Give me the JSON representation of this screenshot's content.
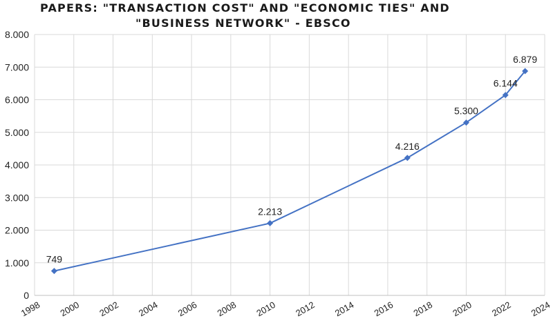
{
  "chart_data": {
    "type": "scatter",
    "title_lines": [
      "PAPERS: \"TRANSACTION COST\" AND \"ECONOMIC TIES\" AND",
      "\"BUSINESS NETWORK\" - EBSCO"
    ],
    "xlabel": "",
    "ylabel": "",
    "xlim": [
      1998,
      2024
    ],
    "ylim": [
      0,
      8000
    ],
    "x_ticks": [
      1998,
      2000,
      2002,
      2004,
      2006,
      2008,
      2010,
      2012,
      2014,
      2016,
      2018,
      2020,
      2022,
      2024
    ],
    "x_tick_labels": [
      "1998",
      "2000",
      "2002",
      "2004",
      "2006",
      "2008",
      "2010",
      "2012",
      "2014",
      "2016",
      "2018",
      "2020",
      "2022",
      "2024"
    ],
    "y_ticks": [
      0,
      1000,
      2000,
      3000,
      4000,
      5000,
      6000,
      7000,
      8000
    ],
    "y_tick_labels": [
      "0",
      "1.000",
      "2.000",
      "3.000",
      "4.000",
      "5.000",
      "6.000",
      "7.000",
      "8.000"
    ],
    "grid": true,
    "line_style": "smooth line with diamond markers",
    "series": [
      {
        "x": [
          1999,
          2010,
          2017,
          2020,
          2022,
          2023
        ],
        "y": [
          749,
          2213,
          4216,
          5300,
          6144,
          6879
        ],
        "labels": [
          "749",
          "2.213",
          "4.216",
          "5.300",
          "6.144",
          "6.879"
        ],
        "color": "#4472C4"
      }
    ],
    "gridline_color": "#d9d9d9"
  }
}
